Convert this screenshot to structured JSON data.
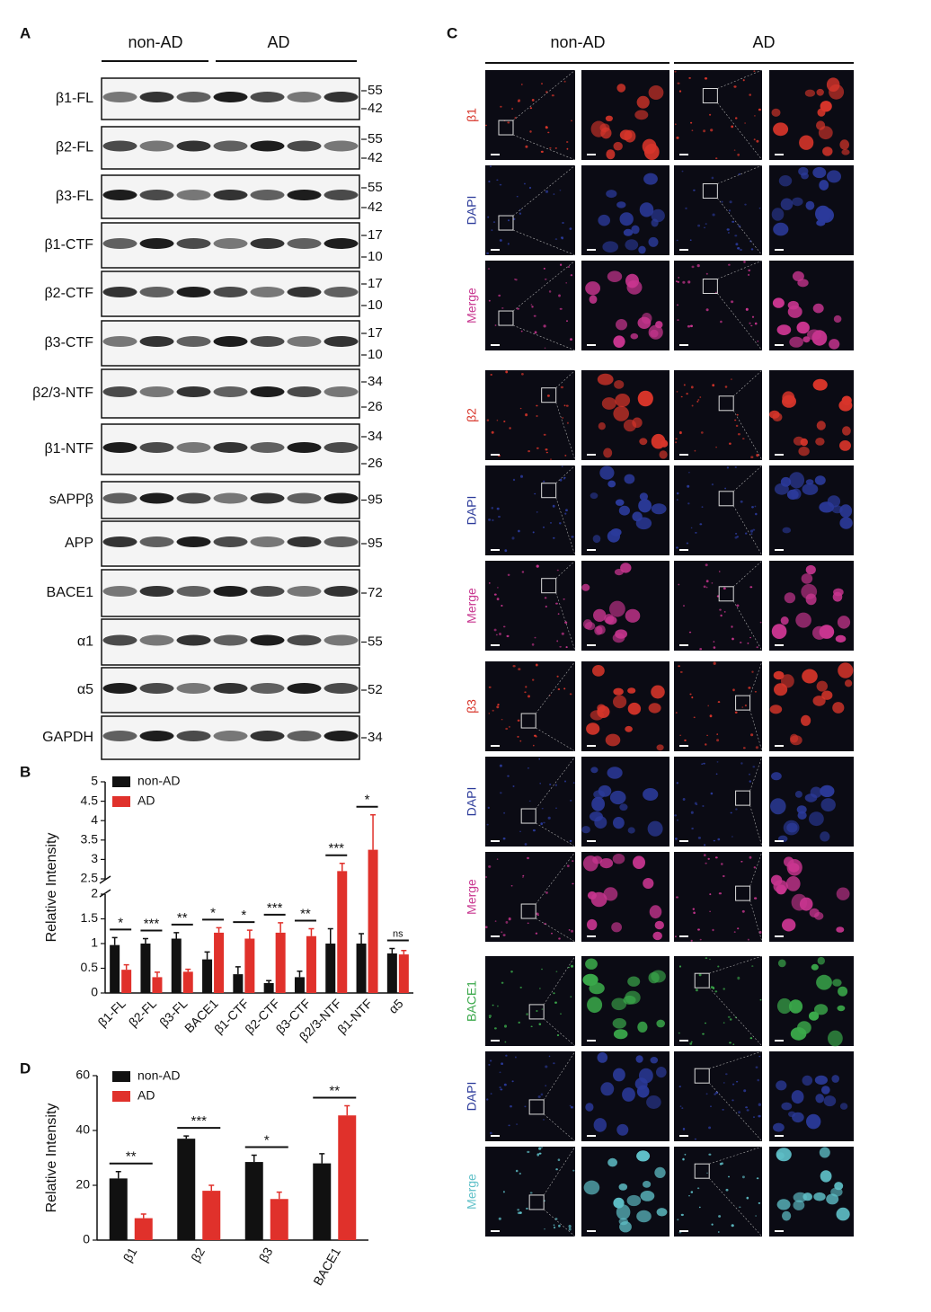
{
  "figure": {
    "panel_labels": [
      "A",
      "B",
      "C",
      "D"
    ]
  },
  "blot": {
    "groups": [
      "non-AD",
      "AD"
    ],
    "rows": [
      {
        "label": "β1-FL",
        "markers": [
          55,
          42
        ]
      },
      {
        "label": "β2-FL",
        "markers": [
          55,
          42
        ]
      },
      {
        "label": "β3-FL",
        "markers": [
          55,
          42
        ]
      },
      {
        "label": "β1-CTF",
        "markers": [
          17,
          10
        ]
      },
      {
        "label": "β2-CTF",
        "markers": [
          17,
          10
        ]
      },
      {
        "label": "β3-CTF",
        "markers": [
          17,
          10
        ]
      },
      {
        "label": "β2/3-NTF",
        "markers": [
          34,
          26
        ]
      },
      {
        "label": "β1-NTF",
        "markers": [
          34,
          26
        ]
      },
      {
        "label": "sAPPβ",
        "markers": [
          95
        ]
      },
      {
        "label": "APP",
        "markers": [
          95
        ]
      },
      {
        "label": "BACE1",
        "markers": [
          72
        ]
      },
      {
        "label": "α1",
        "markers": [
          55
        ]
      },
      {
        "label": "α5",
        "markers": [
          52
        ]
      },
      {
        "label": "GAPDH",
        "markers": [
          34
        ]
      }
    ]
  },
  "chart_data": [
    {
      "type": "bar",
      "y_label": "Relative Intensity",
      "categories": [
        "β1-FL",
        "β2-FL",
        "β3-FL",
        "BACE1",
        "β1-CTF",
        "β2-CTF",
        "β3-CTF",
        "β2/3-NTF",
        "β1-NTF",
        "α5"
      ],
      "series": [
        {
          "name": "non-AD",
          "color": "#111111",
          "values": [
            0.97,
            1.0,
            1.1,
            0.68,
            0.38,
            0.2,
            0.32,
            1.0,
            1.0,
            0.8
          ],
          "errors": [
            0.15,
            0.1,
            0.12,
            0.15,
            0.15,
            0.05,
            0.12,
            0.3,
            0.2,
            0.1
          ]
        },
        {
          "name": "AD",
          "color": "#e0312b",
          "values": [
            0.47,
            0.32,
            0.43,
            1.22,
            1.1,
            1.22,
            1.15,
            2.7,
            3.25,
            0.78
          ],
          "errors": [
            0.1,
            0.1,
            0.05,
            0.1,
            0.17,
            0.2,
            0.15,
            0.2,
            0.9,
            0.08
          ]
        }
      ],
      "significance": [
        "*",
        "***",
        "**",
        "*",
        "*",
        "***",
        "**",
        "***",
        "*",
        "ns"
      ],
      "ylim": [
        0,
        5
      ],
      "yticks": [
        0,
        0.5,
        1,
        1.5,
        2,
        2.5,
        3,
        3.5,
        4,
        4.5,
        5
      ],
      "axis_break": [
        2,
        2.5
      ],
      "legend": "upper-left"
    },
    {
      "type": "bar",
      "y_label": "Relative Intensity",
      "categories": [
        "β1",
        "β2",
        "β3",
        "BACE1"
      ],
      "series": [
        {
          "name": "non-AD",
          "color": "#111111",
          "values": [
            22.5,
            37,
            28.5,
            28
          ],
          "errors": [
            2.5,
            1,
            2.5,
            3.5
          ]
        },
        {
          "name": "AD",
          "color": "#e0312b",
          "values": [
            8,
            18,
            15,
            45.5
          ],
          "errors": [
            1.5,
            2,
            2.5,
            3.5
          ]
        }
      ],
      "significance": [
        "**",
        "***",
        "*",
        "**"
      ],
      "ylim": [
        0,
        60
      ],
      "yticks": [
        0,
        20,
        40,
        60
      ],
      "legend": "upper-left"
    }
  ],
  "microscopy": {
    "columns": [
      "non-AD",
      "AD"
    ],
    "groups": [
      {
        "rows": [
          {
            "label": "β1",
            "color": "#d8352a"
          },
          {
            "label": "DAPI",
            "color": "#2b3a9a"
          },
          {
            "label": "Merge",
            "color": "#c8358f"
          }
        ]
      },
      {
        "rows": [
          {
            "label": "β2",
            "color": "#d8352a"
          },
          {
            "label": "DAPI",
            "color": "#2b3a9a"
          },
          {
            "label": "Merge",
            "color": "#c8358f"
          }
        ]
      },
      {
        "rows": [
          {
            "label": "β3",
            "color": "#d8352a"
          },
          {
            "label": "DAPI",
            "color": "#2b3a9a"
          },
          {
            "label": "Merge",
            "color": "#c8358f"
          }
        ]
      },
      {
        "rows": [
          {
            "label": "BACE1",
            "color": "#3aa84a"
          },
          {
            "label": "DAPI",
            "color": "#2b3a9a"
          },
          {
            "label": "Merge",
            "color": "#5fc0c8"
          }
        ]
      }
    ]
  }
}
